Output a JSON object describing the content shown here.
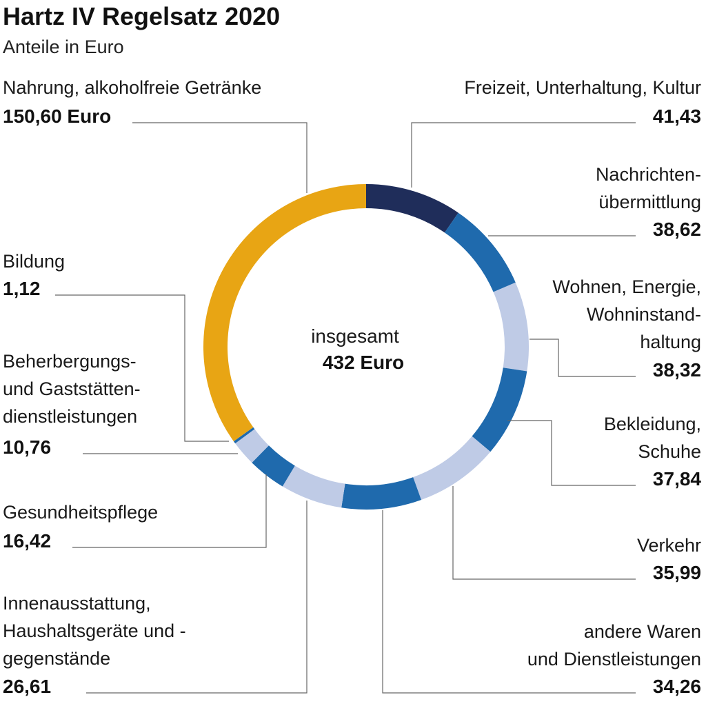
{
  "chart_data": {
    "type": "pie",
    "variant": "donut",
    "title": "Hartz IV Regelsatz 2020",
    "subtitle": "Anteile in Euro",
    "center": {
      "label": "insgesamt",
      "value": "432 Euro"
    },
    "slices": [
      {
        "label": [
          "Freizeit, Unterhaltung, Kultur"
        ],
        "value": 41.43,
        "display": "41,43",
        "color": "#1f2d5a"
      },
      {
        "label": [
          "Nachrichten-",
          "übermittlung"
        ],
        "value": 38.62,
        "display": "38,62",
        "color": "#1f6aad"
      },
      {
        "label": [
          "Wohnen, Energie,",
          "Wohninstand-",
          "haltung"
        ],
        "value": 38.32,
        "display": "38,32",
        "color": "#bfcbe6"
      },
      {
        "label": [
          "Bekleidung,",
          "Schuhe"
        ],
        "value": 37.84,
        "display": "37,84",
        "color": "#1f6aad"
      },
      {
        "label": [
          "Verkehr"
        ],
        "value": 35.99,
        "display": "35,99",
        "color": "#bfcbe6"
      },
      {
        "label": [
          "andere Waren",
          "und Dienstleistungen"
        ],
        "value": 34.26,
        "display": "34,26",
        "color": "#1f6aad"
      },
      {
        "label": [
          "Innenausstattung,",
          "Haushaltsgeräte und -",
          "gegenstände"
        ],
        "value": 26.61,
        "display": "26,61",
        "color": "#bfcbe6"
      },
      {
        "label": [
          "Gesundheitspflege"
        ],
        "value": 16.42,
        "display": "16,42",
        "color": "#1f6aad"
      },
      {
        "label": [
          "Beherbergungs-",
          "und Gaststätten-",
          "dienstleistungen"
        ],
        "value": 10.76,
        "display": "10,76",
        "color": "#bfcbe6"
      },
      {
        "label": [
          "Bildung"
        ],
        "value": 1.12,
        "display": "1,12",
        "color": "#1f6aad"
      },
      {
        "label": [
          "Nahrung, alkoholfreie Getränke"
        ],
        "value": 150.6,
        "display": "150,60 Euro",
        "color": "#e8a514"
      }
    ]
  }
}
